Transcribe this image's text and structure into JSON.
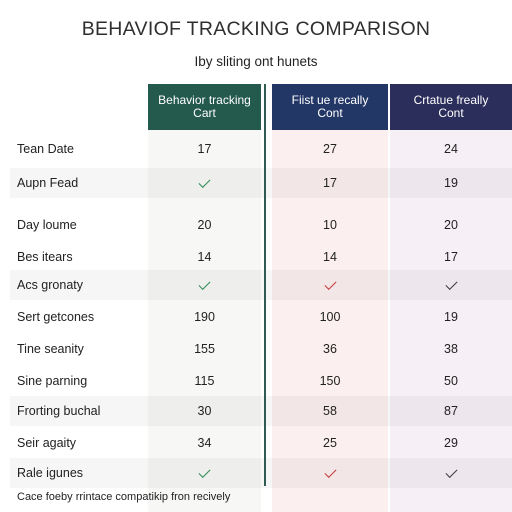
{
  "title": "BEHAVIOF TRACKING COMPARISON",
  "subtitle": "Iby sliting ont hunets",
  "columns": [
    {
      "line1": "Behavior tracking",
      "line2": "Cart",
      "color": "#24594e"
    },
    {
      "line1": "Fiist ue recally",
      "line2": "Cont",
      "color": "#233766"
    },
    {
      "line1": "Crtatue freally",
      "line2": "Cont",
      "color": "#2b2d5a"
    }
  ],
  "rows": [
    {
      "label": "Tean Date",
      "values": [
        "17",
        "27",
        "24"
      ]
    },
    {
      "label": "Aupn Fead",
      "values": [
        "check-green",
        "17",
        "19"
      ]
    },
    {
      "label": "Day loume",
      "values": [
        "20",
        "10",
        "20"
      ]
    },
    {
      "label": "Bes itears",
      "values": [
        "14",
        "14",
        "17"
      ]
    },
    {
      "label": "Acs gronaty",
      "values": [
        "check-green",
        "check-red",
        "check-dark"
      ]
    },
    {
      "label": "Sert getcones",
      "values": [
        "190",
        "100",
        "19"
      ]
    },
    {
      "label": "Tine seanity",
      "values": [
        "155",
        "36",
        "38"
      ]
    },
    {
      "label": "Sine parning",
      "values": [
        "115",
        "150",
        "50"
      ]
    },
    {
      "label": "Frorting buchal",
      "values": [
        "30",
        "58",
        "87"
      ]
    },
    {
      "label": "Seir agaity",
      "values": [
        "34",
        "25",
        "29"
      ]
    },
    {
      "label": "Rale igunes",
      "values": [
        "check-green",
        "check-red",
        "check-dark"
      ]
    }
  ],
  "footer": "Cace foeby rrintace compatikip fron recively"
}
